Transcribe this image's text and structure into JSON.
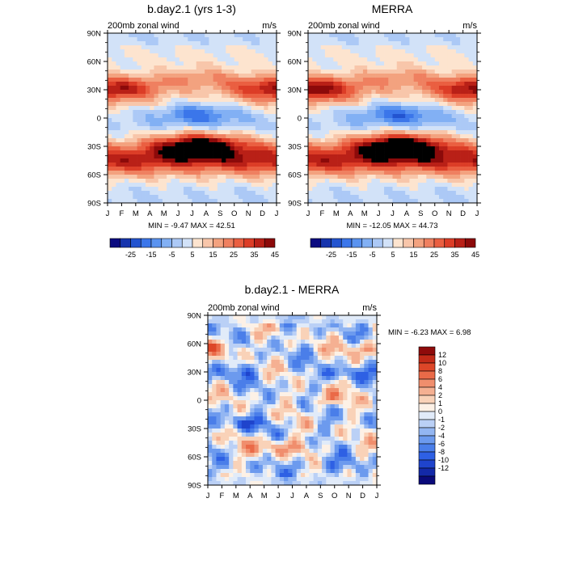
{
  "colors": {
    "abs_scale": [
      "#0b0b80",
      "#1634ad",
      "#2354d0",
      "#3b76ea",
      "#5a93f0",
      "#82b0f4",
      "#acc9f6",
      "#d2e2f8",
      "#fde4cf",
      "#f8c6aa",
      "#f3a27f",
      "#ef8060",
      "#ea5f41",
      "#dc3d27",
      "#b92017",
      "#8c0a0a"
    ],
    "diff_scale": [
      "#0a0a7a",
      "#1329a8",
      "#1f44cc",
      "#2e60e4",
      "#4a7ee9",
      "#6c9aee",
      "#93b6f2",
      "#bad0f6",
      "#e1ebf9",
      "#fdf1e6",
      "#f9d2b8",
      "#f5b092",
      "#f08e6d",
      "#ea6a48",
      "#dd4628",
      "#c22a18",
      "#8f0b0b"
    ]
  },
  "chart_data": [
    {
      "type": "heatmap",
      "id": "top_left",
      "title": "b.day2.1 (yrs 1-3)",
      "left_label": "200mb zonal wind",
      "right_label": "m/s",
      "x_ticks": [
        "J",
        "F",
        "M",
        "A",
        "M",
        "J",
        "J",
        "A",
        "S",
        "O",
        "N",
        "D",
        "J"
      ],
      "y_ticks": [
        "90N",
        "60N",
        "30N",
        "0",
        "30S",
        "60S",
        "90S"
      ],
      "ylim": [
        -90,
        90
      ],
      "stats": "MIN =  -9.47 MAX =  42.51",
      "levels": [
        -30,
        -25,
        -20,
        -15,
        -10,
        -5,
        0,
        5,
        10,
        15,
        20,
        25,
        30,
        35,
        40,
        45
      ],
      "colorbar_labels": [
        "-25",
        "-15",
        "-5",
        "5",
        "15",
        "25",
        "35",
        "45"
      ],
      "colorbar_orientation": "horizontal"
    },
    {
      "type": "heatmap",
      "id": "top_right",
      "title": "MERRA",
      "left_label": "200mb zonal wind",
      "right_label": "m/s",
      "x_ticks": [
        "J",
        "F",
        "M",
        "A",
        "M",
        "J",
        "J",
        "A",
        "S",
        "O",
        "N",
        "D",
        "J"
      ],
      "y_ticks": [
        "90N",
        "60N",
        "30N",
        "0",
        "30S",
        "60S",
        "90S"
      ],
      "ylim": [
        -90,
        90
      ],
      "stats": "MIN = -12.05 MAX =  44.73",
      "levels": [
        -30,
        -25,
        -20,
        -15,
        -10,
        -5,
        0,
        5,
        10,
        15,
        20,
        25,
        30,
        35,
        40,
        45
      ],
      "colorbar_labels": [
        "-25",
        "-15",
        "-5",
        "5",
        "15",
        "25",
        "35",
        "45"
      ],
      "colorbar_orientation": "horizontal"
    },
    {
      "type": "heatmap",
      "id": "bottom_diff",
      "title": "b.day2.1 - MERRA",
      "left_label": "200mb zonal wind",
      "right_label": "m/s",
      "x_ticks": [
        "J",
        "F",
        "M",
        "A",
        "M",
        "J",
        "J",
        "A",
        "S",
        "O",
        "N",
        "D",
        "J"
      ],
      "y_ticks": [
        "90N",
        "60N",
        "30N",
        "0",
        "30S",
        "60S",
        "90S"
      ],
      "ylim": [
        -90,
        90
      ],
      "stats": "MIN =  -6.23 MAX =   6.98",
      "levels": [
        -12,
        -10,
        -8,
        -6,
        -4,
        -2,
        -1,
        0,
        1,
        2,
        4,
        6,
        8,
        10,
        12
      ],
      "colorbar_labels": [
        "12",
        "10",
        "8",
        "6",
        "4",
        "2",
        "1",
        "0",
        "-1",
        "-2",
        "-4",
        "-6",
        "-8",
        "-10",
        "-12"
      ],
      "colorbar_orientation": "vertical"
    }
  ]
}
